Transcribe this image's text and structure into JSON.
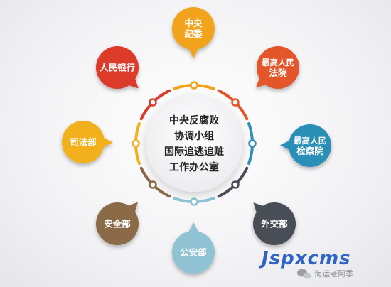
{
  "center": {
    "lines": [
      "中央反腐败",
      "协调小组",
      "国际追逃追赃",
      "工作办公室"
    ]
  },
  "nodes": [
    {
      "id": "zhongyang-jiwei",
      "lines": [
        "中央",
        "纪委"
      ],
      "color": "#f2a31b",
      "dot": "#f2a31b"
    },
    {
      "id": "zuigao-fayuan",
      "lines": [
        "最高人民",
        "法院"
      ],
      "color": "#e4572b",
      "dot": "#e4572b"
    },
    {
      "id": "zuigao-jianchayuan",
      "lines": [
        "最高人民",
        "检察院"
      ],
      "color": "#2b8fb6",
      "dot": "#2b8fb6"
    },
    {
      "id": "waijiaobu",
      "lines": [
        "外交部"
      ],
      "color": "#4a4d57",
      "dot": "#4a4d57"
    },
    {
      "id": "gonganbu",
      "lines": [
        "公安部"
      ],
      "color": "#8fc3d4",
      "dot": "#8fc3d4"
    },
    {
      "id": "anquanbu",
      "lines": [
        "安全部"
      ],
      "color": "#8a6a47",
      "dot": "#8a6a47"
    },
    {
      "id": "sifabu",
      "lines": [
        "司法部"
      ],
      "color": "#f2b11e",
      "dot": "#f2b11e"
    },
    {
      "id": "renmin-yinhang",
      "lines": [
        "人民银行"
      ],
      "color": "#dc3b2b",
      "dot": "#dc3b2b"
    }
  ],
  "watermark": {
    "logo": "Jspxcms",
    "account": "海运老阿季"
  }
}
